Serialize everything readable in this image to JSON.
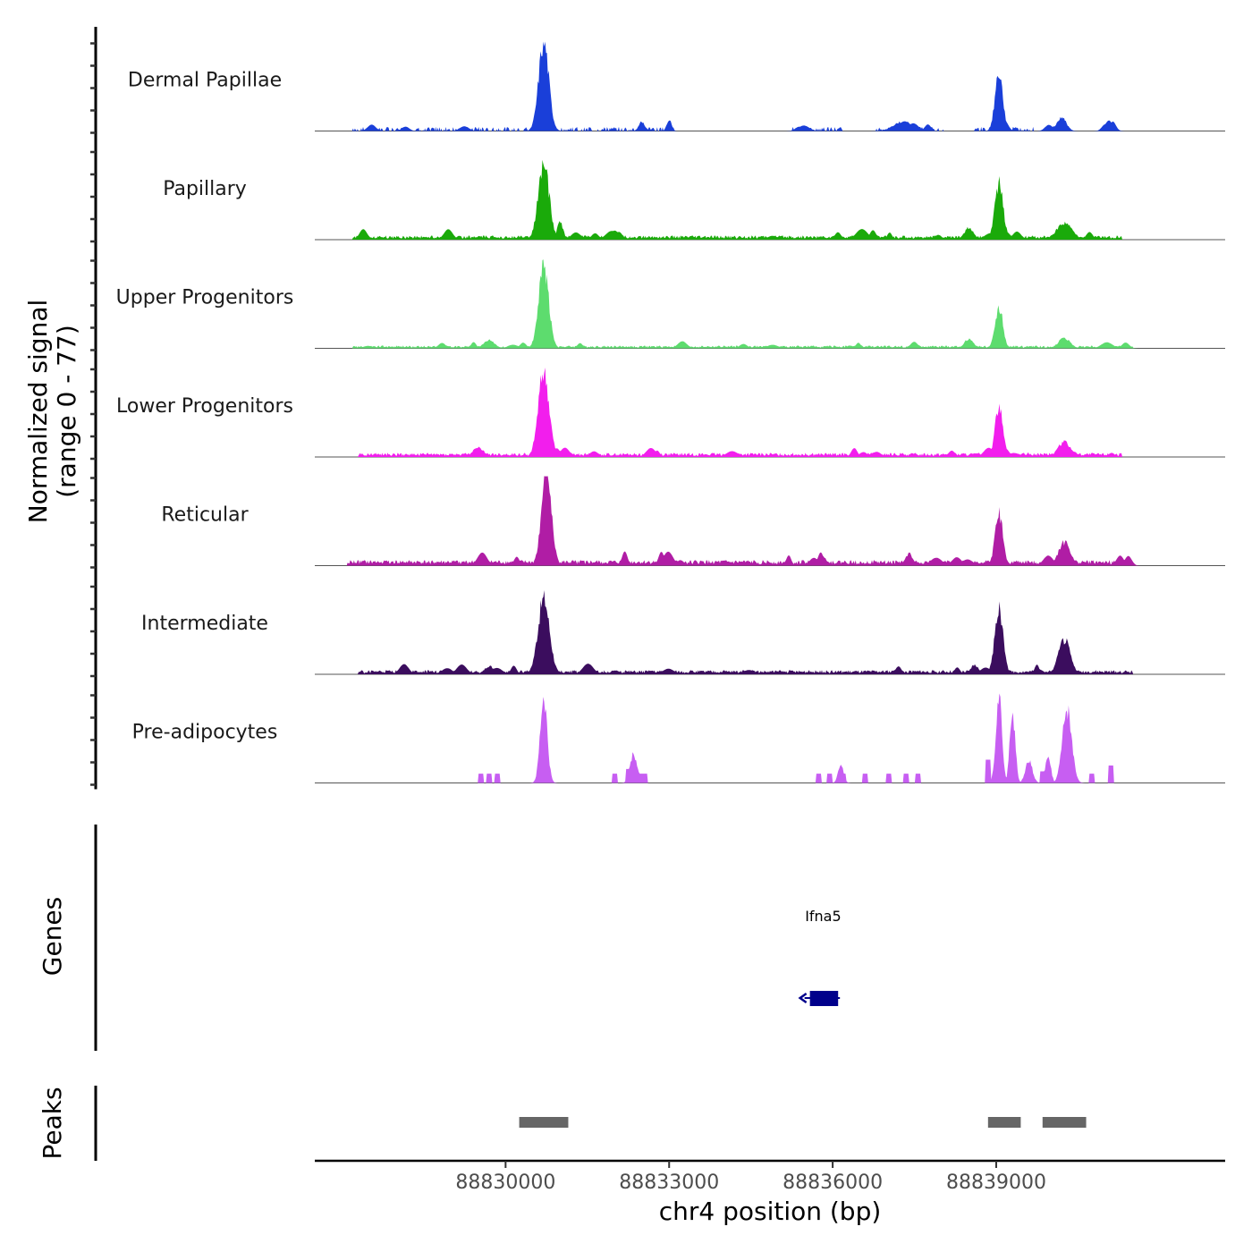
{
  "chart_data": {
    "type": "area",
    "title": "",
    "ylabel": "Normalized signal",
    "ylabel_range": "(range 0 - 77)",
    "ylim": [
      0,
      77
    ],
    "xlabel": "chr4 position (bp)",
    "xlim": [
      88826500,
      88843200
    ],
    "x_ticks": [
      88830000,
      88833000,
      88836000,
      88839000
    ],
    "x_tick_labels": [
      "88830000",
      "88833000",
      "88836000",
      "88839000"
    ],
    "series": [
      {
        "name": "Dermal Papillae",
        "color": "#1a3fd9",
        "peaks": [
          {
            "pos": 88830700,
            "height": 76,
            "width": 130
          },
          {
            "pos": 88839050,
            "height": 50,
            "width": 100
          },
          {
            "pos": 88840200,
            "height": 12,
            "width": 120
          },
          {
            "pos": 88832500,
            "height": 8,
            "width": 80
          },
          {
            "pos": 88833000,
            "height": 10,
            "width": 60
          },
          {
            "pos": 88837300,
            "height": 8,
            "width": 250
          }
        ],
        "background": 3,
        "bg_ranges": [
          [
            88827200,
            88833100
          ],
          [
            88835200,
            88836200
          ],
          [
            88836800,
            88838100
          ],
          [
            88838600,
            88839700
          ],
          [
            88839900,
            88840400
          ],
          [
            88841000,
            88841200
          ]
        ],
        "sparse": true
      },
      {
        "name": "Papillary",
        "color": "#1aaa0a",
        "peaks": [
          {
            "pos": 88830700,
            "height": 65,
            "width": 140
          },
          {
            "pos": 88831000,
            "height": 15,
            "width": 80
          },
          {
            "pos": 88839050,
            "height": 48,
            "width": 110
          },
          {
            "pos": 88838500,
            "height": 10,
            "width": 120
          },
          {
            "pos": 88840250,
            "height": 14,
            "width": 200
          }
        ],
        "background": 3,
        "bg_ranges": [
          [
            88827200,
            88841300
          ]
        ]
      },
      {
        "name": "Upper Progenitors",
        "color": "#5ddc6e",
        "peaks": [
          {
            "pos": 88830700,
            "height": 70,
            "width": 130
          },
          {
            "pos": 88829700,
            "height": 7,
            "width": 140
          },
          {
            "pos": 88839050,
            "height": 36,
            "width": 100
          },
          {
            "pos": 88838500,
            "height": 8,
            "width": 120
          },
          {
            "pos": 88840250,
            "height": 9,
            "width": 150
          }
        ],
        "background": 2,
        "bg_ranges": [
          [
            88827200,
            88841500
          ]
        ]
      },
      {
        "name": "Lower Progenitors",
        "color": "#f21eed",
        "peaks": [
          {
            "pos": 88830700,
            "height": 74,
            "width": 140
          },
          {
            "pos": 88829500,
            "height": 8,
            "width": 140
          },
          {
            "pos": 88839050,
            "height": 44,
            "width": 100
          },
          {
            "pos": 88840250,
            "height": 13,
            "width": 160
          }
        ],
        "background": 3,
        "bg_ranges": [
          [
            88827300,
            88841300
          ]
        ]
      },
      {
        "name": "Reticular",
        "color": "#b01da5",
        "peaks": [
          {
            "pos": 88830750,
            "height": 77,
            "width": 130
          },
          {
            "pos": 88839050,
            "height": 45,
            "width": 100
          },
          {
            "pos": 88840250,
            "height": 20,
            "width": 150
          },
          {
            "pos": 88837400,
            "height": 10,
            "width": 100
          },
          {
            "pos": 88835800,
            "height": 8,
            "width": 120
          }
        ],
        "background": 4,
        "bg_ranges": [
          [
            88827100,
            88841500
          ]
        ]
      },
      {
        "name": "Intermediate",
        "color": "#3b0d5e",
        "peaks": [
          {
            "pos": 88830700,
            "height": 65,
            "width": 150
          },
          {
            "pos": 88839050,
            "height": 55,
            "width": 110
          },
          {
            "pos": 88840250,
            "height": 30,
            "width": 150
          },
          {
            "pos": 88838600,
            "height": 8,
            "width": 100
          },
          {
            "pos": 88829700,
            "height": 7,
            "width": 120
          }
        ],
        "background": 3,
        "bg_ranges": [
          [
            88827300,
            88841500
          ]
        ]
      },
      {
        "name": "Pre-adipocytes",
        "color": "#c75ef2",
        "peaks": [
          {
            "pos": 88830700,
            "height": 74,
            "width": 90
          },
          {
            "pos": 88832350,
            "height": 25,
            "width": 90
          },
          {
            "pos": 88839050,
            "height": 74,
            "width": 80
          },
          {
            "pos": 88839300,
            "height": 60,
            "width": 70
          },
          {
            "pos": 88840300,
            "height": 62,
            "width": 120
          },
          {
            "pos": 88839950,
            "height": 24,
            "width": 70
          },
          {
            "pos": 88839600,
            "height": 20,
            "width": 90
          },
          {
            "pos": 88836150,
            "height": 15,
            "width": 70
          }
        ],
        "blocks": [
          [
            88829500,
            88829600,
            8
          ],
          [
            88829650,
            88829750,
            8
          ],
          [
            88829800,
            88829900,
            8
          ],
          [
            88831950,
            88832050,
            8
          ],
          [
            88832200,
            88832300,
            12
          ],
          [
            88832450,
            88832600,
            8
          ],
          [
            88835700,
            88835800,
            8
          ],
          [
            88835900,
            88836000,
            8
          ],
          [
            88836100,
            88836250,
            8
          ],
          [
            88836550,
            88836650,
            8
          ],
          [
            88836980,
            88837080,
            8
          ],
          [
            88837300,
            88837400,
            8
          ],
          [
            88837520,
            88837620,
            8
          ],
          [
            88838800,
            88838900,
            20
          ],
          [
            88839800,
            88839950,
            10
          ],
          [
            88840700,
            88840800,
            8
          ],
          [
            88841050,
            88841150,
            15
          ]
        ]
      }
    ],
    "genes": [
      {
        "name": "Ifna5",
        "start": 88835550,
        "end": 88836100,
        "strand": "-",
        "color": "#00008b"
      }
    ],
    "peaks_track": [
      {
        "start": 88830250,
        "end": 88831150
      },
      {
        "start": 88838850,
        "end": 88839450
      },
      {
        "start": 88839850,
        "end": 88840650
      }
    ],
    "panel_titles": {
      "genes": "Genes",
      "peaks": "Peaks"
    }
  }
}
